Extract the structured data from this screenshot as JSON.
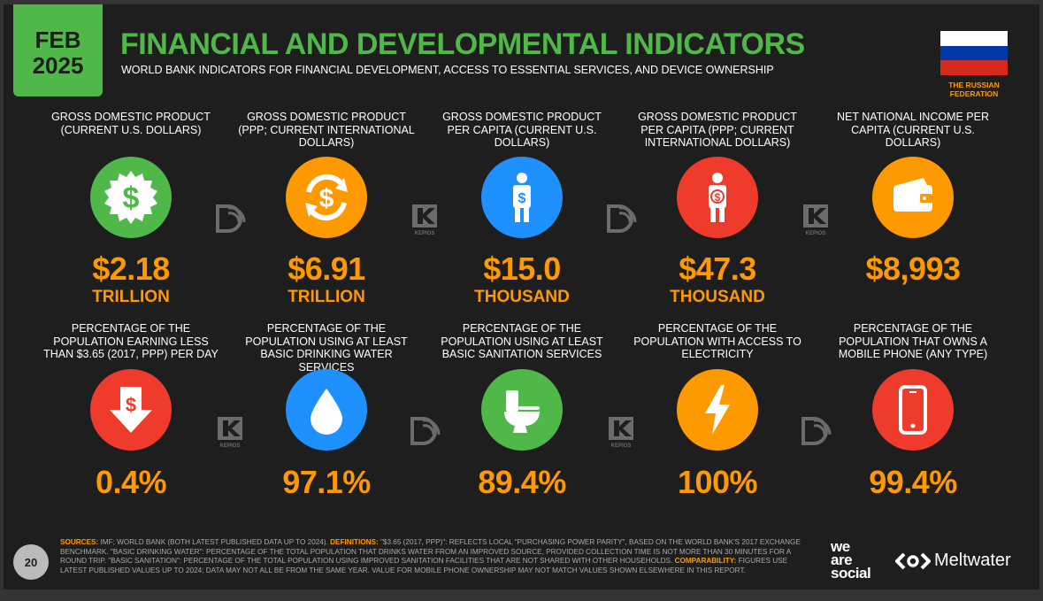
{
  "header": {
    "month": "FEB",
    "year": "2025",
    "title": "FINANCIAL AND DEVELOPMENTAL INDICATORS",
    "subtitle": "WORLD BANK INDICATORS FOR FINANCIAL DEVELOPMENT, ACCESS TO ESSENTIAL SERVICES, AND DEVICE OWNERSHIP",
    "country_line1": "THE RUSSIAN",
    "country_line2": "FEDERATION",
    "flag_colors": [
      "#ffffff",
      "#0039a6",
      "#d52b1e"
    ]
  },
  "row1": [
    {
      "label": "GROSS DOMESTIC PRODUCT (CURRENT U.S. DOLLARS)",
      "value": "$2.18",
      "unit": "TRILLION",
      "icon": "dollar-badge-icon",
      "color": "#4fb848"
    },
    {
      "label": "GROSS DOMESTIC PRODUCT (PPP; CURRENT INTERNATIONAL DOLLARS)",
      "value": "$6.91",
      "unit": "TRILLION",
      "icon": "dollar-exchange-icon",
      "color": "#ff9900"
    },
    {
      "label": "GROSS DOMESTIC PRODUCT PER CAPITA (CURRENT U.S. DOLLARS)",
      "value": "$15.0",
      "unit": "THOUSAND",
      "icon": "person-dollar-icon",
      "color": "#1e90ff"
    },
    {
      "label": "GROSS DOMESTIC PRODUCT PER CAPITA (PPP; CURRENT INTERNATIONAL DOLLARS)",
      "value": "$47.3",
      "unit": "THOUSAND",
      "icon": "person-exchange-icon",
      "color": "#ee3b2b"
    },
    {
      "label": "NET NATIONAL INCOME PER CAPITA (CURRENT U.S. DOLLARS)",
      "value": "$8,993",
      "unit": "",
      "icon": "wallet-icon",
      "color": "#ff9900"
    }
  ],
  "row2": [
    {
      "label": "PERCENTAGE OF THE POPULATION EARNING LESS THAN $3.65 (2017, PPP) PER DAY",
      "value": "0.4%",
      "icon": "dollar-down-arrow-icon",
      "color": "#ee3b2b"
    },
    {
      "label": "PERCENTAGE OF THE POPULATION USING AT LEAST BASIC DRINKING WATER SERVICES",
      "value": "97.1%",
      "icon": "water-drop-icon",
      "color": "#1e90ff"
    },
    {
      "label": "PERCENTAGE OF THE POPULATION USING AT LEAST BASIC SANITATION SERVICES",
      "value": "89.4%",
      "icon": "toilet-icon",
      "color": "#4fb848"
    },
    {
      "label": "PERCENTAGE OF THE POPULATION WITH ACCESS TO ELECTRICITY",
      "value": "100%",
      "icon": "lightning-icon",
      "color": "#ff9900"
    },
    {
      "label": "PERCENTAGE OF THE POPULATION THAT OWNS A MOBILE PHONE (ANY TYPE)",
      "value": "99.4%",
      "icon": "mobile-phone-icon",
      "color": "#ee3b2b"
    }
  ],
  "separators": {
    "logo_a": "datareportal-icon",
    "logo_b": "kepios-icon",
    "kepios_text": "KEPIOS"
  },
  "footer": {
    "sources_key": "SOURCES:",
    "sources_text": " IMF; WORLD BANK (BOTH LATEST PUBLISHED DATA UP TO 2024). ",
    "definitions_key": "DEFINITIONS:",
    "definitions_text": " \"$3.65 (2017, PPP)\": REFLECTS LOCAL \"PURCHASING POWER PARITY\", BASED ON THE WORLD BANK'S 2017 EXCHANGE BENCHMARK. \"BASIC DRINKING WATER\": PERCENTAGE OF THE TOTAL POPULATION THAT DRINKS WATER FROM AN IMPROVED SOURCE, PROVIDED COLLECTION TIME IS NOT MORE THAN 30 MINUTES FOR A ROUND TRIP. \"BASIC SANITATION\": PERCENTAGE OF THE TOTAL POPULATION USING IMPROVED SANITATION FACILITIES THAT ARE NOT SHARED WITH OTHER HOUSEHOLDS. ",
    "comparability_key": "COMPARABILITY:",
    "comparability_text": " FIGURES USE LATEST PUBLISHED VALUES UP TO 2024; DATA MAY NOT ALL BE FROM THE SAME YEAR. VALUE FOR MOBILE PHONE OWNERSHIP MAY NOT MATCH VALUES SHOWN ELSEWHERE IN THIS REPORT.",
    "page_number": "20",
    "brand_we": "we",
    "brand_are": "are",
    "brand_social": "social",
    "brand_meltwater": "Meltwater"
  }
}
